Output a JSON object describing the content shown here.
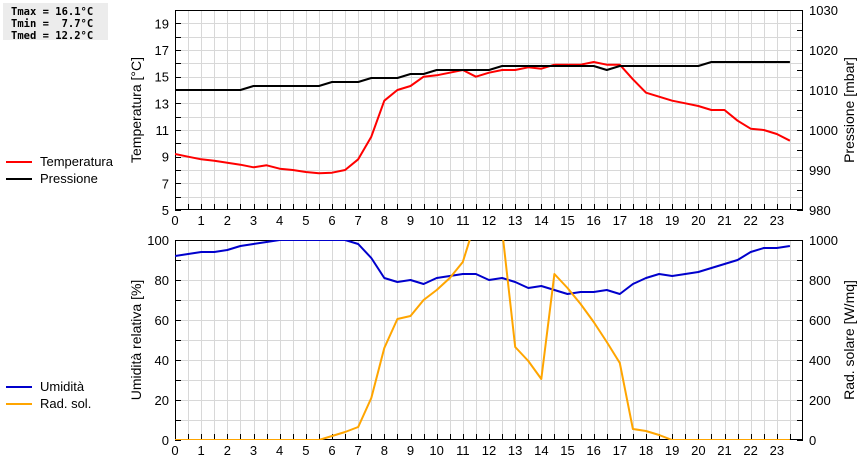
{
  "stats": {
    "tmax": "Tmax = 16.1°C",
    "tmin": "Tmin =  7.7°C",
    "tmed": "Tmed = 12.2°C"
  },
  "legend_top": [
    {
      "label": "Temperatura",
      "color": "#ff0000"
    },
    {
      "label": "Pressione",
      "color": "#000000"
    }
  ],
  "legend_bottom": [
    {
      "label": "Umidità",
      "color": "#0000cc"
    },
    {
      "label": "Rad. sol.",
      "color": "#ffa500"
    }
  ],
  "chart_data": [
    {
      "type": "line",
      "title": "",
      "xlabel": "",
      "x_ticks": [
        0,
        1,
        2,
        3,
        4,
        5,
        6,
        7,
        8,
        9,
        10,
        11,
        12,
        13,
        14,
        15,
        16,
        17,
        18,
        19,
        20,
        21,
        22,
        23
      ],
      "xlim": [
        0,
        24
      ],
      "grid": true,
      "legend_position": "left",
      "ylabel": "Temperatura [°C]",
      "ylim": [
        5,
        20
      ],
      "y_ticks": [
        5,
        7,
        9,
        11,
        13,
        15,
        17,
        19
      ],
      "y2label": "Pressione [mbar]",
      "y2lim": [
        980,
        1030
      ],
      "y2_ticks": [
        980,
        990,
        1000,
        1010,
        1020,
        1030
      ],
      "x": [
        0,
        0.5,
        1,
        1.5,
        2,
        2.5,
        3,
        3.5,
        4,
        4.5,
        5,
        5.5,
        6,
        6.5,
        7,
        7.5,
        8,
        8.5,
        9,
        9.5,
        10,
        10.5,
        11,
        11.5,
        12,
        12.5,
        13,
        13.5,
        14,
        14.5,
        15,
        15.5,
        16,
        16.5,
        17,
        17.5,
        18,
        18.5,
        19,
        19.5,
        20,
        20.5,
        21,
        21.5,
        22,
        22.5,
        23,
        23.5
      ],
      "series": [
        {
          "name": "Temperatura",
          "axis": "left",
          "color": "#ff0000",
          "values": [
            9.2,
            9.0,
            8.8,
            8.7,
            8.55,
            8.4,
            8.2,
            8.35,
            8.1,
            8.0,
            7.85,
            7.75,
            7.8,
            8.0,
            8.8,
            10.5,
            13.2,
            14.0,
            14.3,
            15.0,
            15.1,
            15.3,
            15.5,
            15.0,
            15.3,
            15.5,
            15.5,
            15.7,
            15.6,
            15.9,
            15.9,
            15.9,
            16.1,
            15.9,
            15.9,
            14.8,
            13.8,
            13.5,
            13.2,
            13.0,
            12.8,
            12.5,
            12.5,
            11.7,
            11.1,
            11.0,
            10.7,
            10.2
          ]
        },
        {
          "name": "Pressione",
          "axis": "right",
          "color": "#000000",
          "values": [
            1010,
            1010,
            1010,
            1010,
            1010,
            1010,
            1011,
            1011,
            1011,
            1011,
            1011,
            1011,
            1012,
            1012,
            1012,
            1013,
            1013,
            1013,
            1014,
            1014,
            1015,
            1015,
            1015,
            1015,
            1015,
            1016,
            1016,
            1016,
            1016,
            1016,
            1016,
            1016,
            1016,
            1015,
            1016,
            1016,
            1016,
            1016,
            1016,
            1016,
            1016,
            1017,
            1017,
            1017,
            1017,
            1017,
            1017,
            1017
          ]
        }
      ]
    },
    {
      "type": "line",
      "title": "",
      "xlabel": "",
      "x_ticks": [
        0,
        1,
        2,
        3,
        4,
        5,
        6,
        7,
        8,
        9,
        10,
        11,
        12,
        13,
        14,
        15,
        16,
        17,
        18,
        19,
        20,
        21,
        22,
        23
      ],
      "xlim": [
        0,
        24
      ],
      "grid": true,
      "legend_position": "left",
      "ylabel": "Umidità relativa [%]",
      "ylim": [
        0,
        100
      ],
      "y_ticks": [
        0,
        20,
        40,
        60,
        80,
        100
      ],
      "y2label": "Rad. solare [W/mq]",
      "y2lim": [
        0,
        1000
      ],
      "y2_ticks": [
        0,
        200,
        400,
        600,
        800,
        1000
      ],
      "x": [
        0,
        0.5,
        1,
        1.5,
        2,
        2.5,
        3,
        3.5,
        4,
        4.5,
        5,
        5.5,
        6,
        6.5,
        7,
        7.5,
        8,
        8.5,
        9,
        9.5,
        10,
        10.5,
        11,
        11.5,
        12,
        12.5,
        13,
        13.5,
        14,
        14.5,
        15,
        15.5,
        16,
        16.5,
        17,
        17.5,
        18,
        18.5,
        19,
        19.5,
        20,
        20.5,
        21,
        21.5,
        22,
        22.5,
        23,
        23.5
      ],
      "series": [
        {
          "name": "Umidità",
          "axis": "left",
          "color": "#0000cc",
          "values": [
            92,
            93,
            94,
            94,
            95,
            97,
            98,
            99,
            100,
            100,
            100,
            100,
            100,
            100,
            98,
            91,
            81,
            79,
            80,
            78,
            81,
            82,
            83,
            83,
            80,
            81,
            79,
            76,
            77,
            75,
            73,
            74,
            74,
            75,
            73,
            78,
            81,
            83,
            82,
            83,
            84,
            86,
            88,
            90,
            94,
            96,
            96,
            97
          ]
        },
        {
          "name": "Rad. sol.",
          "axis": "right",
          "color": "#ffa500",
          "values": [
            0,
            0,
            0,
            0,
            0,
            0,
            0,
            0,
            0,
            0,
            0,
            0,
            20,
            40,
            65,
            210,
            460,
            605,
            620,
            700,
            750,
            810,
            890,
            1100,
            1200,
            1050,
            465,
            395,
            305,
            830,
            760,
            680,
            590,
            490,
            385,
            55,
            45,
            25,
            0,
            0,
            0,
            0,
            0,
            0,
            0,
            0,
            0,
            0
          ]
        }
      ]
    }
  ]
}
